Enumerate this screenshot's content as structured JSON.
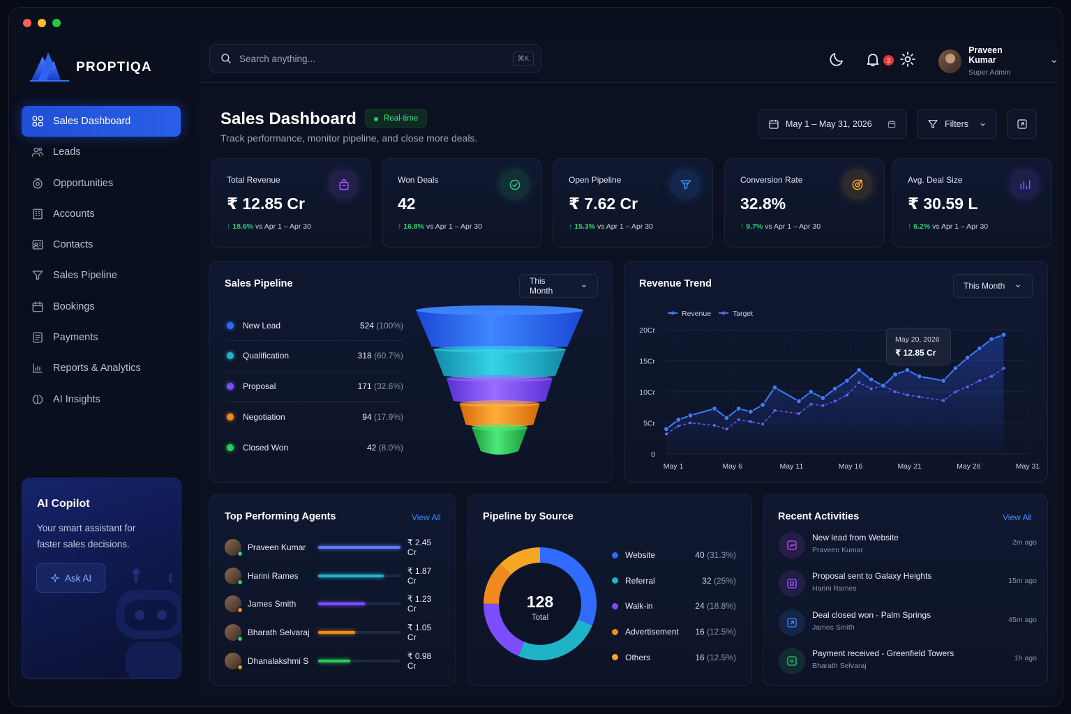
{
  "brand": {
    "name": "PROPTIQA"
  },
  "sidebar": {
    "items": [
      {
        "label": "Sales Dashboard",
        "icon": "grid-icon",
        "active": true
      },
      {
        "label": "Leads",
        "icon": "users-icon"
      },
      {
        "label": "Opportunities",
        "icon": "target-icon"
      },
      {
        "label": "Accounts",
        "icon": "building-icon"
      },
      {
        "label": "Contacts",
        "icon": "contact-card-icon"
      },
      {
        "label": "Sales Pipeline",
        "icon": "funnel-icon"
      },
      {
        "label": "Bookings",
        "icon": "calendar-icon"
      },
      {
        "label": "Payments",
        "icon": "receipt-icon"
      },
      {
        "label": "Reports & Analytics",
        "icon": "bar-chart-icon"
      },
      {
        "label": "AI Insights",
        "icon": "ai-brain-icon"
      }
    ]
  },
  "copilot": {
    "title": "AI Copilot",
    "text": "Your smart assistant for faster sales decisions.",
    "button": "Ask AI"
  },
  "search": {
    "placeholder": "Search anything...",
    "shortcut": "⌘K"
  },
  "notifications": {
    "count": "3"
  },
  "user": {
    "name": "Praveen Kumar",
    "role": "Super Admin"
  },
  "header": {
    "title": "Sales Dashboard",
    "badge": "Real-time",
    "subtitle": "Track performance, monitor pipeline, and close more deals."
  },
  "date_range": "May 1 – May 31, 2026",
  "filters_label": "Filters",
  "kpis": [
    {
      "label": "Total Revenue",
      "value": "₹ 12.85 Cr",
      "change": "18.6%",
      "compare": "vs Apr 1 – Apr 30",
      "icon": "bag-icon",
      "color": "#a25cff"
    },
    {
      "label": "Won Deals",
      "value": "42",
      "change": "16.8%",
      "compare": "vs Apr 1 – Apr 30",
      "icon": "check-circle-icon",
      "color": "#2ecc71"
    },
    {
      "label": "Open Pipeline",
      "value": "₹ 7.62 Cr",
      "change": "15.3%",
      "compare": "vs Apr 1 – Apr 30",
      "icon": "funnel-icon",
      "color": "#3d8bff"
    },
    {
      "label": "Conversion Rate",
      "value": "32.8%",
      "change": "9.7%",
      "compare": "vs Apr 1 – Apr 30",
      "icon": "target-icon",
      "color": "#f5a623"
    },
    {
      "label": "Avg. Deal Size",
      "value": "₹ 30.59 L",
      "change": "6.2%",
      "compare": "vs Apr 1 – Apr 30",
      "icon": "bar-chart-icon",
      "color": "#7b5cff"
    }
  ],
  "pipeline": {
    "title": "Sales Pipeline",
    "period": "This Month",
    "stages": [
      {
        "label": "New Lead",
        "value": "524",
        "pct": "(100%)",
        "color": "#2f6bff"
      },
      {
        "label": "Qualification",
        "value": "318",
        "pct": "(60.7%)",
        "color": "#1fb3c8"
      },
      {
        "label": "Proposal",
        "value": "171",
        "pct": "(32.6%)",
        "color": "#7b4dff"
      },
      {
        "label": "Negotiation",
        "value": "94",
        "pct": "(17.9%)",
        "color": "#f08a1c"
      },
      {
        "label": "Closed Won",
        "value": "42",
        "pct": "(8.0%)",
        "color": "#2ecc55"
      }
    ]
  },
  "revenue": {
    "title": "Revenue Trend",
    "period": "This Month",
    "tooltip": {
      "date": "May 20, 2026",
      "value": "₹ 12.85 Cr"
    }
  },
  "chart_data": {
    "type": "line",
    "x": [
      1,
      2,
      3,
      5,
      6,
      7,
      8,
      9,
      10,
      12,
      13,
      14,
      15,
      16,
      17,
      18,
      19,
      20,
      21,
      22,
      24,
      25,
      26,
      27,
      28,
      29
    ],
    "series": [
      {
        "name": "Revenue",
        "color": "#3d7bff",
        "values": [
          4,
          5.5,
          6.2,
          7.3,
          5.8,
          7.3,
          6.8,
          7.9,
          10.7,
          8.5,
          10,
          9,
          10.5,
          11.8,
          13.5,
          12,
          11,
          12.8,
          13.5,
          12.5,
          11.8,
          13.8,
          15.5,
          17,
          18.5,
          19.2
        ]
      },
      {
        "name": "Target",
        "color": "#6d5cff",
        "values": [
          3.2,
          4.5,
          5,
          4.6,
          4,
          5.5,
          5.2,
          4.8,
          7,
          6.5,
          8,
          7.8,
          8.5,
          9.5,
          11.5,
          10.5,
          11,
          10,
          9.5,
          9.2,
          8.6,
          10,
          10.8,
          11.8,
          12.5,
          13.8
        ]
      }
    ],
    "ylim": [
      0,
      20
    ],
    "yticks": [
      "0",
      "5Cr",
      "10Cr",
      "15Cr",
      "20Cr"
    ],
    "xticks": [
      "May 1",
      "May 6",
      "May 11",
      "May 16",
      "May 21",
      "May 26",
      "May 31"
    ]
  },
  "agents": {
    "title": "Top Performing Agents",
    "view_all": "View All",
    "items": [
      {
        "name": "Praveen Kumar",
        "value": "₹ 2.45 Cr",
        "fill": 1.0,
        "color": "#5b7cff",
        "status": "#2ecc71"
      },
      {
        "name": "Harini Rames",
        "value": "₹ 1.87 Cr",
        "fill": 0.8,
        "color": "#1fb3c8",
        "status": "#2ecc71"
      },
      {
        "name": "James Smith",
        "value": "₹ 1.23 Cr",
        "fill": 0.57,
        "color": "#7b4dff",
        "status": "#f08a1c"
      },
      {
        "name": "Bharath Selvaraj",
        "value": "₹ 1.05 Cr",
        "fill": 0.45,
        "color": "#f08a1c",
        "status": "#2ecc71"
      },
      {
        "name": "Dhanalakshmi S",
        "value": "₹ 0.98 Cr",
        "fill": 0.39,
        "color": "#2ecc55",
        "status": "#f08a1c"
      }
    ]
  },
  "sources": {
    "title": "Pipeline by Source",
    "total": "128",
    "total_label": "Total",
    "items": [
      {
        "label": "Website",
        "value": "40",
        "pct": "(31.3%)",
        "share": 31.3,
        "color": "#2f6bff"
      },
      {
        "label": "Referral",
        "value": "32",
        "pct": "(25%)",
        "share": 25,
        "color": "#1fb3c8"
      },
      {
        "label": "Walk-in",
        "value": "24",
        "pct": "(18.8%)",
        "share": 18.8,
        "color": "#7b4dff"
      },
      {
        "label": "Advertisement",
        "value": "16",
        "pct": "(12.5%)",
        "share": 12.5,
        "color": "#f08a1c"
      },
      {
        "label": "Others",
        "value": "16",
        "pct": "(12.5%)",
        "share": 12.5,
        "color": "#f5a623"
      }
    ]
  },
  "activities": {
    "title": "Recent Activities",
    "view_all": "View All",
    "items": [
      {
        "title": "New lead from Website",
        "by": "Praveen Kumar",
        "time": "2m ago",
        "color": "#c04dff",
        "icon": "lead-icon"
      },
      {
        "title": "Proposal sent to Galaxy Heights",
        "by": "Harini Rames",
        "time": "15m ago",
        "color": "#9b5cff",
        "icon": "document-icon"
      },
      {
        "title": "Deal closed won - Palm Springs",
        "by": "James Smith",
        "time": "45m ago",
        "color": "#3d8bff",
        "icon": "deal-icon"
      },
      {
        "title": "Payment received - Greenfield Towers",
        "by": "Bharath Selvaraj",
        "time": "1h ago",
        "color": "#2ecc71",
        "icon": "payment-icon"
      }
    ]
  }
}
